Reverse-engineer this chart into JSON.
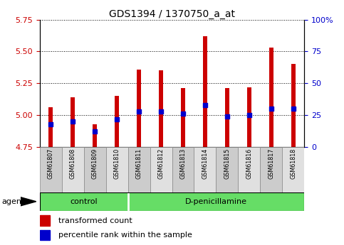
{
  "title": "GDS1394 / 1370750_a_at",
  "samples": [
    "GSM61807",
    "GSM61808",
    "GSM61809",
    "GSM61810",
    "GSM61811",
    "GSM61812",
    "GSM61813",
    "GSM61814",
    "GSM61815",
    "GSM61816",
    "GSM61817",
    "GSM61818"
  ],
  "transformed_count": [
    5.06,
    5.14,
    4.93,
    5.15,
    5.36,
    5.35,
    5.21,
    5.62,
    5.21,
    5.22,
    5.53,
    5.4
  ],
  "percentile_rank": [
    18,
    20,
    12,
    22,
    28,
    28,
    26,
    33,
    24,
    25,
    30,
    30
  ],
  "bar_bottom": 4.75,
  "ylim_left": [
    4.75,
    5.75
  ],
  "ylim_right": [
    0,
    100
  ],
  "yticks_left": [
    4.75,
    5.0,
    5.25,
    5.5,
    5.75
  ],
  "yticks_right": [
    0,
    25,
    50,
    75,
    100
  ],
  "bar_color": "#cc0000",
  "dot_color": "#0000cc",
  "control_samples": 4,
  "group_labels": [
    "control",
    "D-penicillamine"
  ],
  "group_bg": "#66DD66",
  "agent_label": "agent",
  "legend_bar_label": "transformed count",
  "legend_dot_label": "percentile rank within the sample",
  "title_fontsize": 10,
  "tick_fontsize": 8,
  "left_axis_color": "#cc0000",
  "right_axis_color": "#0000cc",
  "sample_box_even": "#cccccc",
  "sample_box_odd": "#e0e0e0"
}
